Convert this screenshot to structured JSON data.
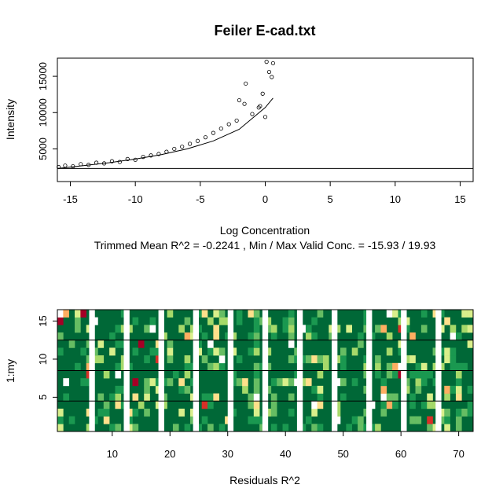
{
  "chart_data": [
    {
      "type": "scatter",
      "title": "Feiler E-cad.txt",
      "xlabel": "Log Concentration",
      "subtitle": "Trimmed Mean R^2 = -0.2241 , Min / Max Valid Conc. = -15.93 / 19.93",
      "ylabel": "Intensity",
      "xlim": [
        -16,
        16
      ],
      "ylim": [
        500,
        17500
      ],
      "x_ticks": [
        -15,
        -10,
        -5,
        0,
        5,
        10,
        15
      ],
      "y_ticks": [
        5000,
        10000,
        15000
      ],
      "x_tick_labels": [
        "-15",
        "-10",
        "-5",
        "0",
        "5",
        "10",
        "15"
      ],
      "y_tick_labels": [
        "5000",
        "10000",
        "15000"
      ],
      "marker": "open-circle",
      "hline": 2300,
      "fit_curve": {
        "x": [
          -16,
          -14,
          -12,
          -10,
          -8,
          -6,
          -4,
          -2,
          0,
          0.6
        ],
        "y": [
          2300,
          2700,
          3100,
          3600,
          4200,
          5000,
          6100,
          7700,
          10700,
          12000
        ]
      },
      "points": {
        "x": [
          -15.9,
          -15.4,
          -14.8,
          -14.2,
          -13.6,
          -13.0,
          -12.4,
          -11.8,
          -11.2,
          -10.6,
          -10.0,
          -9.4,
          -8.8,
          -8.2,
          -7.6,
          -7.0,
          -6.4,
          -5.8,
          -5.2,
          -4.6,
          -4.0,
          -3.4,
          -2.8,
          -2.2,
          -1.6,
          -1.0,
          -0.5,
          0.0,
          0.3,
          0.6,
          -1.5,
          -2.0,
          -0.2,
          0.1,
          0.5,
          -0.4
        ],
        "y": [
          2500,
          2700,
          2600,
          2900,
          2800,
          3100,
          3000,
          3300,
          3200,
          3600,
          3500,
          3900,
          4100,
          4300,
          4600,
          5000,
          5300,
          5700,
          6100,
          6600,
          7200,
          7800,
          8400,
          8900,
          11200,
          9800,
          10700,
          9400,
          15600,
          16800,
          14000,
          11700,
          12600,
          17000,
          14900,
          10900
        ]
      }
    },
    {
      "type": "heatmap",
      "xlabel": "Residuals R^2",
      "ylabel": "1:my",
      "xlim": [
        0.5,
        72.5
      ],
      "ylim": [
        0.5,
        16.5
      ],
      "x_ticks": [
        10,
        20,
        30,
        40,
        50,
        60,
        70
      ],
      "y_ticks": [
        5,
        10,
        15
      ],
      "x_tick_labels": [
        "10",
        "20",
        "30",
        "40",
        "50",
        "60",
        "70"
      ],
      "y_tick_labels": [
        "5",
        "10",
        "15"
      ],
      "group_width": 6,
      "gap_columns": [
        6,
        12,
        18,
        24,
        30,
        36,
        42,
        48,
        54,
        60,
        66
      ],
      "row_separators": [
        4.5,
        8.5,
        12.5
      ],
      "palette": [
        "#006837",
        "#1a9850",
        "#66bd63",
        "#a6d96a",
        "#d9ef8b",
        "#fee08b",
        "#fdae61",
        "#f46d43",
        "#d73027",
        "#a50026",
        "#ffffff"
      ],
      "background_color": "#006837"
    }
  ]
}
